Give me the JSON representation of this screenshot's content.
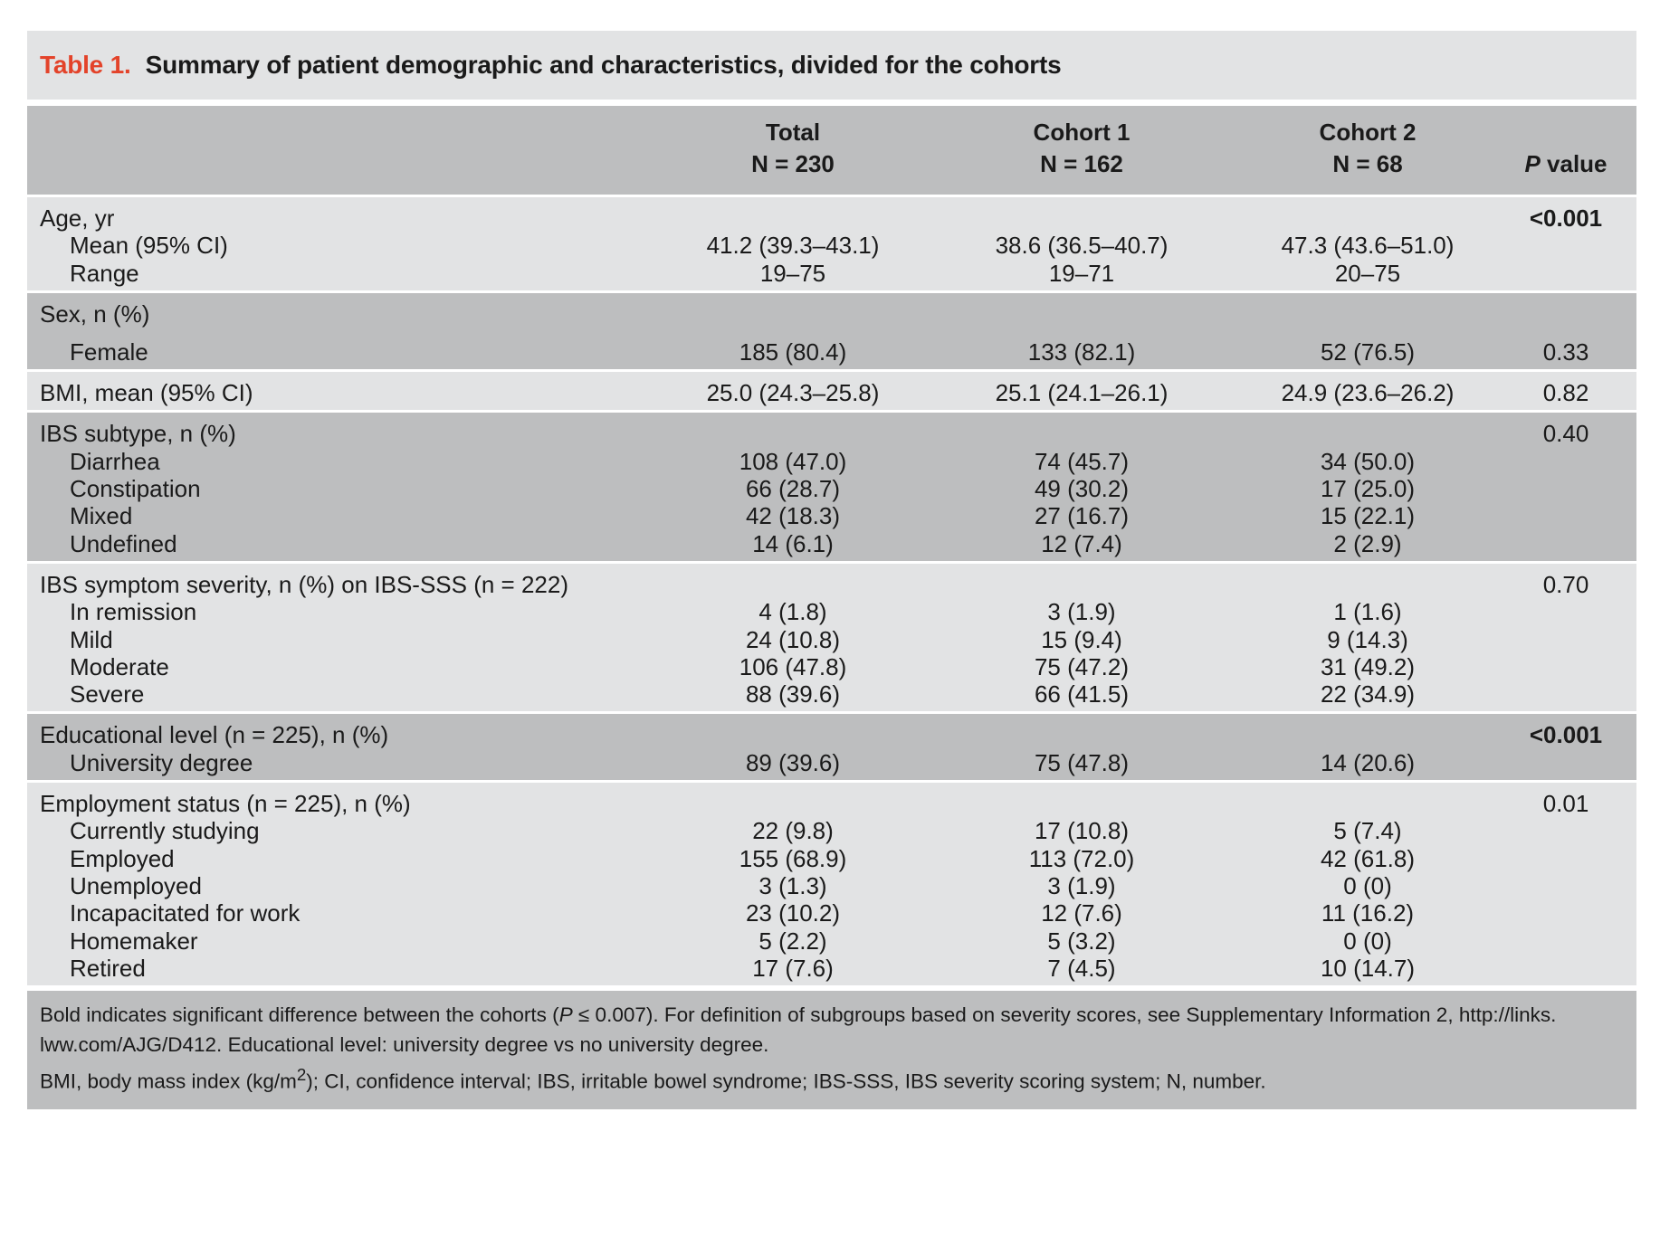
{
  "caption": {
    "number": "Table 1.",
    "title": "Summary of patient demographic and characteristics, divided for the cohorts"
  },
  "header": {
    "total": {
      "name": "Total",
      "n": "N = 230"
    },
    "cohort1": {
      "name": "Cohort 1",
      "n": "N = 162"
    },
    "cohort2": {
      "name": "Cohort 2",
      "n": "N = 68"
    },
    "pvalue_p": "P",
    "pvalue_rest": " value"
  },
  "groups": [
    {
      "shade": "light",
      "pad_top": 6,
      "pad_bottom": 6,
      "rows": [
        {
          "label": "Age, yr",
          "p": "<0.001",
          "p_bold": true
        },
        {
          "label": "Mean (95% CI)",
          "indent": true,
          "v1": "41.2 (39.3–43.1)",
          "v2": "38.6 (36.5–40.7)",
          "v3": "47.3 (43.6–51.0)"
        },
        {
          "label": "Range",
          "indent": true,
          "v1": "19–75",
          "v2": "19–71",
          "v3": "20–75"
        }
      ]
    },
    {
      "shade": "dark",
      "pad_top": 6,
      "pad_bottom": 6,
      "rows": [
        {
          "label": "Sex, n (%)",
          "height": 42
        },
        {
          "label": "Female",
          "indent": true,
          "v1": "185 (80.4)",
          "v2": "133 (82.1)",
          "v3": "52 (76.5)",
          "p": "0.33"
        }
      ]
    },
    {
      "shade": "light",
      "pad_top": 6,
      "pad_bottom": 6,
      "rows": [
        {
          "label": "BMI, mean (95% CI)",
          "v1": "25.0 (24.3–25.8)",
          "v2": "25.1 (24.1–26.1)",
          "v3": "24.9 (23.6–26.2)",
          "p": "0.82"
        }
      ]
    },
    {
      "shade": "dark",
      "pad_top": 6,
      "pad_bottom": 6,
      "rows": [
        {
          "label": "IBS subtype, n (%)",
          "p": "0.40"
        },
        {
          "label": "Diarrhea",
          "indent": true,
          "v1": "108 (47.0)",
          "v2": "74 (45.7)",
          "v3": "34 (50.0)"
        },
        {
          "label": "Constipation",
          "indent": true,
          "v1": "66 (28.7)",
          "v2": "49 (30.2)",
          "v3": "17 (25.0)"
        },
        {
          "label": "Mixed",
          "indent": true,
          "v1": "42 (18.3)",
          "v2": "27 (16.7)",
          "v3": "15 (22.1)"
        },
        {
          "label": "Undefined",
          "indent": true,
          "v1": "14 (6.1)",
          "v2": "12 (7.4)",
          "v3": "2 (2.9)"
        }
      ]
    },
    {
      "shade": "light",
      "pad_top": 6,
      "pad_bottom": 6,
      "rows": [
        {
          "label": "IBS symptom severity, n (%) on IBS-SSS (n = 222)",
          "p": "0.70"
        },
        {
          "label": "In remission",
          "indent": true,
          "v1": "4 (1.8)",
          "v2": "3 (1.9)",
          "v3": "1 (1.6)"
        },
        {
          "label": "Mild",
          "indent": true,
          "v1": "24 (10.8)",
          "v2": "15 (9.4)",
          "v3": "9 (14.3)"
        },
        {
          "label": "Moderate",
          "indent": true,
          "v1": "106 (47.8)",
          "v2": "75 (47.2)",
          "v3": "31 (49.2)"
        },
        {
          "label": "Severe",
          "indent": true,
          "v1": "88 (39.6)",
          "v2": "66 (41.5)",
          "v3": "22 (34.9)"
        }
      ]
    },
    {
      "shade": "dark",
      "pad_top": 6,
      "pad_bottom": 6,
      "rows": [
        {
          "label": "Educational level (n = 225), n (%)",
          "p": "<0.001",
          "p_bold": true
        },
        {
          "label": "University degree",
          "indent": true,
          "v1": "89 (39.6)",
          "v2": "75 (47.8)",
          "v3": "14 (20.6)"
        }
      ]
    },
    {
      "shade": "light",
      "pad_top": 6,
      "pad_bottom": 6,
      "rows": [
        {
          "label": "Employment status (n = 225), n (%)",
          "p": "0.01"
        },
        {
          "label": "Currently studying",
          "indent": true,
          "v1": "22 (9.8)",
          "v2": "17 (10.8)",
          "v3": "5 (7.4)"
        },
        {
          "label": "Employed",
          "indent": true,
          "v1": "155 (68.9)",
          "v2": "113 (72.0)",
          "v3": "42 (61.8)"
        },
        {
          "label": "Unemployed",
          "indent": true,
          "v1": "3 (1.3)",
          "v2": "3 (1.9)",
          "v3": "0 (0)"
        },
        {
          "label": "Incapacitated for work",
          "indent": true,
          "v1": "23 (10.2)",
          "v2": "12 (7.6)",
          "v3": "11 (16.2)"
        },
        {
          "label": "Homemaker",
          "indent": true,
          "v1": "5 (2.2)",
          "v2": "5 (3.2)",
          "v3": "0 (0)"
        },
        {
          "label": "Retired",
          "indent": true,
          "v1": "17 (7.6)",
          "v2": "7 (4.5)",
          "v3": "10 (14.7)"
        }
      ]
    }
  ],
  "footer": {
    "line1_a": "Bold indicates significant difference between the cohorts (",
    "line1_p": "P",
    "line1_b": " ≤ 0.007). For definition of subgroups based on severity scores, see Supplementary Information 2, http://links.",
    "line2": "lww.com/AJG/D412. Educational level: university degree vs no university degree.",
    "line3_a": "BMI, body mass index (kg/m",
    "line3_sup": "2",
    "line3_b": "); CI, confidence interval; IBS, irritable bowel syndrome; IBS-SSS, IBS severity scoring system; N, number."
  }
}
